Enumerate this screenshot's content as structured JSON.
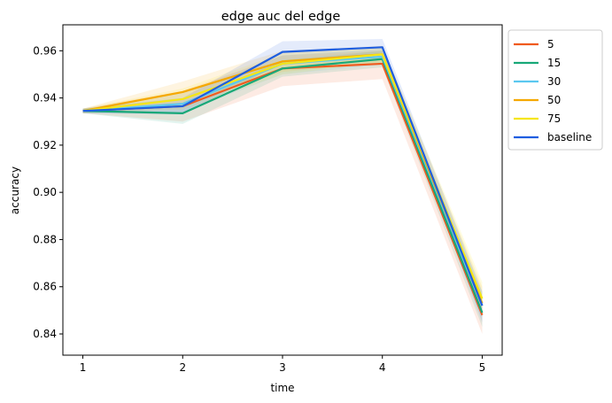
{
  "chart_data": {
    "type": "line",
    "title": "edge auc del edge",
    "xlabel": "time",
    "ylabel": "accuracy",
    "x": [
      1,
      2,
      3,
      4,
      5
    ],
    "xlim": [
      0.8,
      5.2
    ],
    "ylim": [
      0.831,
      0.971
    ],
    "xticks": [
      "1",
      "2",
      "3",
      "4",
      "5"
    ],
    "yticks": [
      "0.84",
      "0.86",
      "0.88",
      "0.90",
      "0.92",
      "0.94",
      "0.96"
    ],
    "ytick_values": [
      0.84,
      0.86,
      0.88,
      0.9,
      0.92,
      0.94,
      0.96
    ],
    "grid": false,
    "legend_position": "outside-right-top",
    "series": [
      {
        "name": "5",
        "color": "#f05a1e",
        "values": [
          0.9345,
          0.9365,
          0.9525,
          0.9545,
          0.848
        ],
        "lower": [
          0.9335,
          0.93,
          0.945,
          0.948,
          0.84
        ],
        "upper": [
          0.9355,
          0.943,
          0.958,
          0.96,
          0.856
        ]
      },
      {
        "name": "15",
        "color": "#18a878",
        "values": [
          0.9345,
          0.9335,
          0.9525,
          0.9565,
          0.849
        ],
        "lower": [
          0.9335,
          0.929,
          0.949,
          0.953,
          0.843
        ],
        "upper": [
          0.9355,
          0.938,
          0.956,
          0.96,
          0.856
        ]
      },
      {
        "name": "30",
        "color": "#5bc8f0",
        "values": [
          0.9345,
          0.9375,
          0.9545,
          0.9575,
          0.852
        ],
        "lower": [
          0.9335,
          0.934,
          0.95,
          0.954,
          0.847
        ],
        "upper": [
          0.9355,
          0.942,
          0.958,
          0.961,
          0.858
        ]
      },
      {
        "name": "50",
        "color": "#f5a800",
        "values": [
          0.9345,
          0.9425,
          0.9555,
          0.9585,
          0.853
        ],
        "lower": [
          0.9335,
          0.938,
          0.951,
          0.955,
          0.847
        ],
        "upper": [
          0.9355,
          0.947,
          0.96,
          0.962,
          0.86
        ]
      },
      {
        "name": "75",
        "color": "#f5e614",
        "values": [
          0.9345,
          0.9395,
          0.9545,
          0.9585,
          0.855
        ],
        "lower": [
          0.9335,
          0.935,
          0.95,
          0.955,
          0.848
        ],
        "upper": [
          0.9355,
          0.944,
          0.959,
          0.962,
          0.862
        ]
      },
      {
        "name": "baseline",
        "color": "#1f5ee0",
        "values": [
          0.9345,
          0.9365,
          0.9595,
          0.9615,
          0.852
        ],
        "lower": [
          0.9335,
          0.933,
          0.955,
          0.958,
          0.845
        ],
        "upper": [
          0.9355,
          0.94,
          0.964,
          0.965,
          0.858
        ]
      }
    ]
  }
}
